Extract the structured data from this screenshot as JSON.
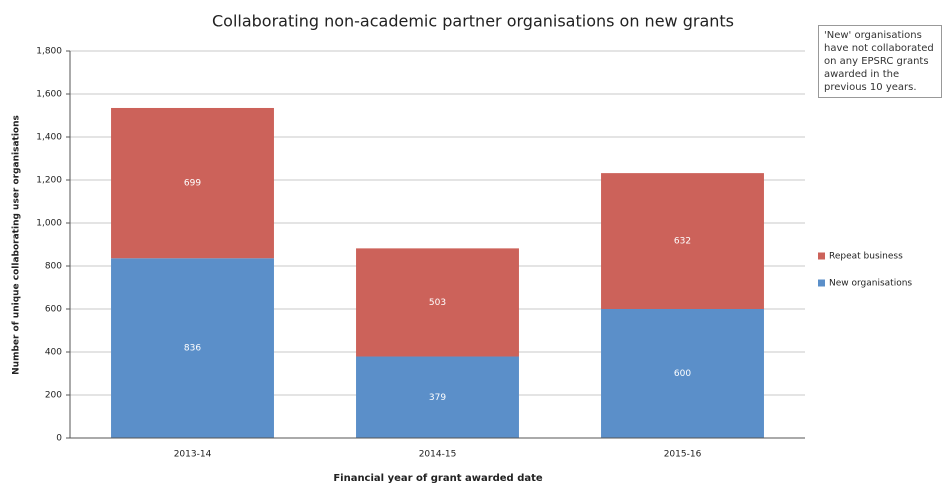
{
  "chart_data": {
    "type": "stacked_bar",
    "title": "Collaborating non-academic partner organisations on new grants",
    "x_label": "Financial year of grant awarded date",
    "y_label": "Number of unique collaborating user organisations",
    "annotation": "'New' organisations have not collaborated on any EPSRC grants awarded in the previous 10 years.",
    "categories": [
      "2013-14",
      "2014-15",
      "2015-16"
    ],
    "series": [
      {
        "name": "New organisations",
        "color": "#5b8fc9",
        "values": [
          836,
          379,
          600
        ]
      },
      {
        "name": "Repeat business",
        "color": "#cc625a",
        "values": [
          699,
          503,
          632
        ]
      }
    ],
    "ylim": [
      0,
      1800
    ],
    "yticks": [
      0,
      200,
      400,
      600,
      800,
      {
        "value": 1000,
        "label": "1,000"
      },
      {
        "value": 1200,
        "label": "1,200"
      },
      {
        "value": 1400,
        "label": "1,400"
      },
      {
        "value": 1600,
        "label": "1,600"
      },
      {
        "value": 1800,
        "label": "1,800"
      }
    ],
    "grid": true,
    "legend": "right"
  }
}
